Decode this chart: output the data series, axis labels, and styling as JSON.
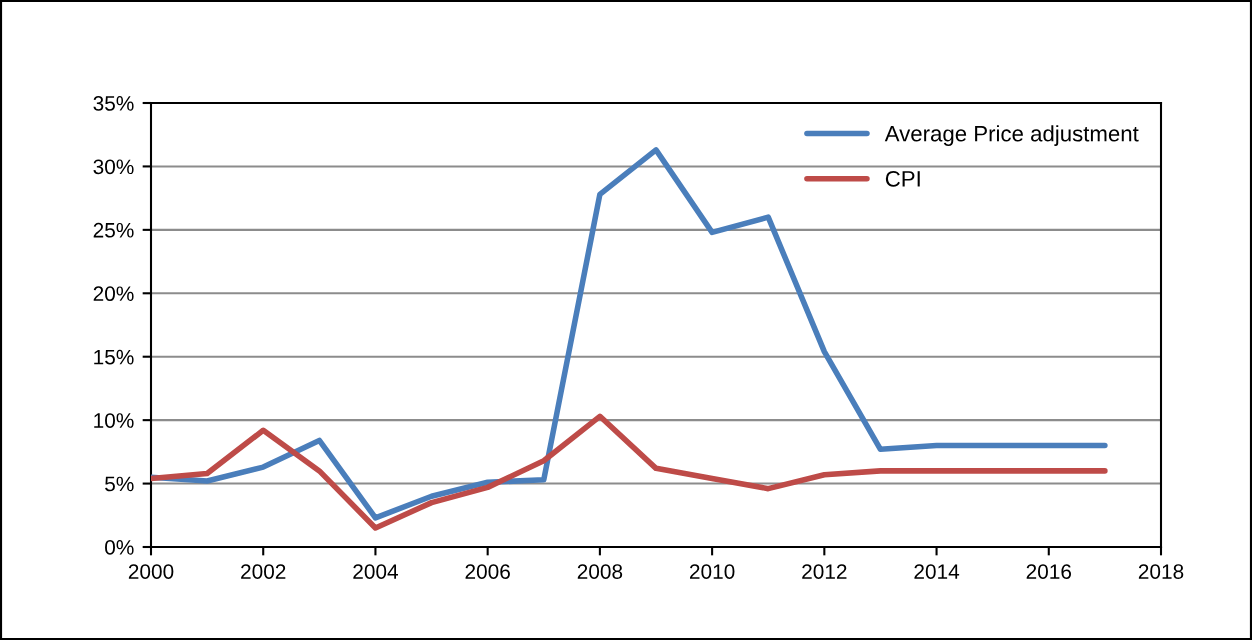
{
  "chart_data": {
    "type": "line",
    "x": [
      2000,
      2001,
      2002,
      2003,
      2004,
      2005,
      2006,
      2007,
      2008,
      2009,
      2010,
      2011,
      2012,
      2013,
      2014,
      2015,
      2016,
      2017
    ],
    "series": [
      {
        "name": "Average Price adjustment",
        "color": "#4a7ebb",
        "values": [
          5.5,
          5.2,
          6.3,
          8.4,
          2.3,
          4.0,
          5.1,
          5.3,
          27.8,
          31.3,
          24.8,
          26.0,
          15.4,
          7.7,
          8.0,
          8.0,
          8.0,
          8.0
        ]
      },
      {
        "name": "CPI",
        "color": "#be4b48",
        "values": [
          5.4,
          5.8,
          9.2,
          6.0,
          1.5,
          3.5,
          4.7,
          6.8,
          10.3,
          6.2,
          5.4,
          4.6,
          5.7,
          6.0,
          6.0,
          6.0,
          6.0,
          6.0
        ]
      }
    ],
    "xlim": [
      2000,
      2018
    ],
    "xticks": [
      2000,
      2002,
      2004,
      2006,
      2008,
      2010,
      2012,
      2014,
      2016,
      2018
    ],
    "ylim": [
      0,
      35
    ],
    "yticks": [
      {
        "value": 0,
        "label": "0%"
      },
      {
        "value": 5,
        "label": "5%"
      },
      {
        "value": 10,
        "label": "10%"
      },
      {
        "value": 15,
        "label": "15%"
      },
      {
        "value": 20,
        "label": "20%"
      },
      {
        "value": 25,
        "label": "25%"
      },
      {
        "value": 30,
        "label": "30%"
      },
      {
        "value": 35,
        "label": "35%"
      }
    ],
    "grid": "y",
    "legend": "top right",
    "line_style": "solid"
  }
}
